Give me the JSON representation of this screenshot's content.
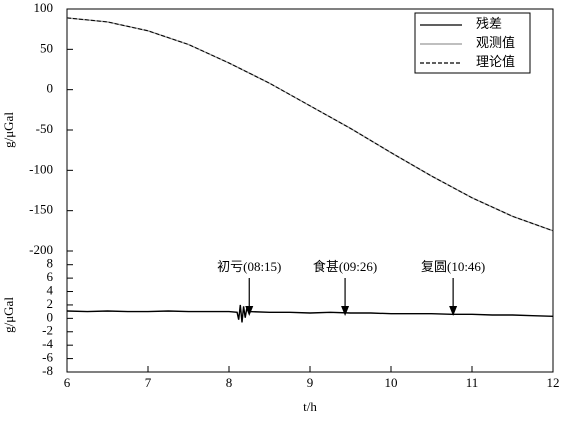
{
  "chart_data": [
    {
      "type": "line",
      "ylabel": "g/μGal",
      "ylim": [
        -200,
        100
      ],
      "yticks": [
        100,
        50,
        0,
        -50,
        -100,
        -150,
        -200
      ],
      "x": [
        6,
        6.5,
        7,
        7.5,
        8,
        8.5,
        9,
        9.5,
        10,
        10.5,
        11,
        11.5,
        12
      ],
      "series": [
        {
          "name": "观测值",
          "color": "#999999",
          "dash": false,
          "values": [
            89,
            84,
            73,
            56,
            33,
            8,
            -20,
            -48,
            -78,
            -107,
            -134,
            -157,
            -175
          ]
        },
        {
          "name": "理论值",
          "color": "#000000",
          "dash": true,
          "values": [
            89,
            84,
            73,
            56,
            33,
            8,
            -20,
            -48,
            -78,
            -107,
            -134,
            -157,
            -175
          ]
        }
      ],
      "legend": "upper right"
    },
    {
      "type": "line",
      "ylabel": "g/μGal",
      "xlabel": "t/h",
      "xlim": [
        6,
        12
      ],
      "xticks": [
        6,
        7,
        8,
        9,
        10,
        11,
        12
      ],
      "ylim": [
        -8,
        9
      ],
      "yticks": [
        8,
        6,
        4,
        2,
        0,
        -2,
        -4,
        -6,
        -8
      ],
      "x": [
        6,
        6.25,
        6.5,
        6.75,
        7,
        7.25,
        7.5,
        7.75,
        8,
        8.1,
        8.12,
        8.14,
        8.16,
        8.18,
        8.2,
        8.22,
        8.25,
        8.5,
        8.75,
        9,
        9.25,
        9.5,
        9.75,
        10,
        10.25,
        10.5,
        10.75,
        11,
        11.25,
        11.5,
        11.75,
        12
      ],
      "series": [
        {
          "name": "残差",
          "color": "#000000",
          "dash": false,
          "values": [
            1.1,
            1.0,
            1.1,
            1.0,
            1.0,
            1.1,
            1.0,
            1.0,
            1.0,
            0.9,
            -0.2,
            2.0,
            -0.6,
            1.8,
            0.1,
            1.5,
            1.0,
            0.9,
            0.9,
            0.8,
            0.9,
            0.8,
            0.8,
            0.7,
            0.7,
            0.7,
            0.6,
            0.6,
            0.5,
            0.5,
            0.4,
            0.3
          ]
        }
      ],
      "annotations": [
        {
          "text": "初亏(08:15)",
          "x": 8.25
        },
        {
          "text": "食甚(09:26)",
          "x": 9.433
        },
        {
          "text": "复圆(10:46)",
          "x": 10.767
        }
      ]
    }
  ]
}
